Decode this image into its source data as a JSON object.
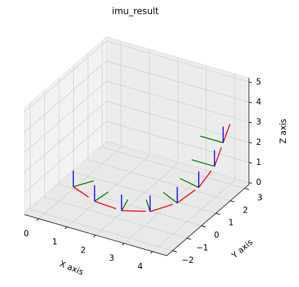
{
  "chart_data": {
    "type": "frames3d",
    "title": "imu_result",
    "x_label": "X axis",
    "y_label": "Y axis",
    "z_label": "Z axis",
    "x": [
      0,
      1,
      2,
      2.9,
      3.6,
      4.0,
      4.2,
      4.2
    ],
    "y": [
      0,
      -0.5,
      -0.6,
      -0.4,
      0.1,
      0.8,
      1.5,
      2.1
    ],
    "z": [
      0,
      0,
      0,
      0.2,
      0.6,
      1.1,
      1.8,
      2.6
    ],
    "axis_length": 0.8,
    "axis_colors": [
      "red",
      "green",
      "blue"
    ],
    "xlim": [
      -0.5,
      4.5
    ],
    "xticks": [
      0,
      1,
      2,
      3,
      4
    ],
    "ylim": [
      -2.4,
      3.3
    ],
    "yticks": [
      {
        "value": -2,
        "label": "−2"
      },
      {
        "value": -1,
        "label": "−1"
      },
      0,
      1,
      2,
      3
    ],
    "zlim": [
      -0.1,
      5.2
    ],
    "zticks": [
      0,
      1,
      2,
      3,
      4,
      5
    ],
    "grid": true
  }
}
